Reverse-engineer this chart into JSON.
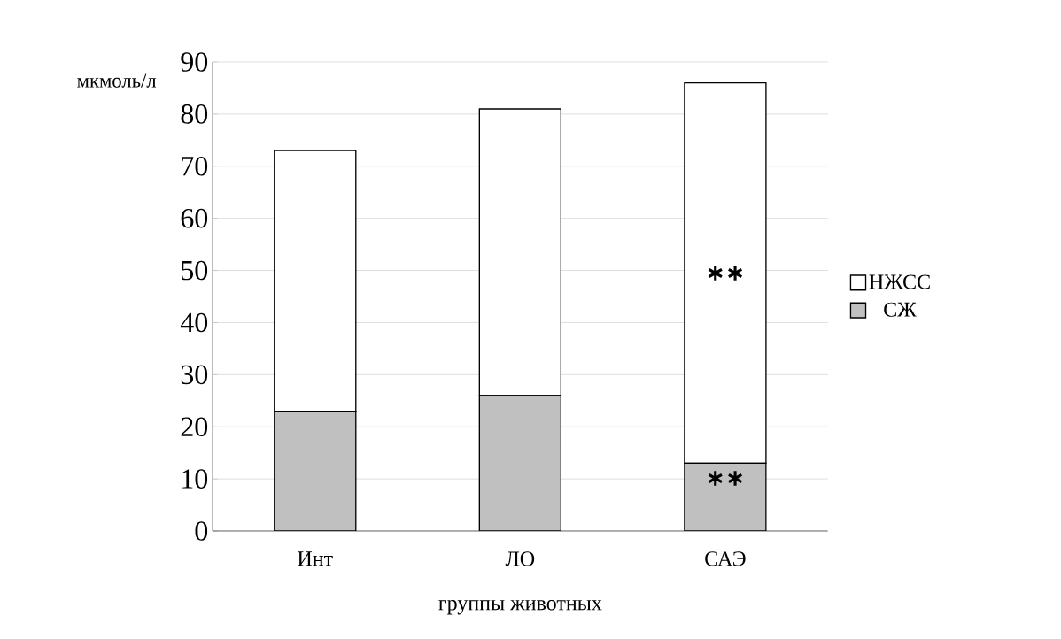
{
  "chart_data": {
    "type": "bar",
    "stacked": true,
    "xlabel": "группы животных",
    "ylabel": "мкмоль/л",
    "categories": [
      "Инт",
      "ЛО",
      "САЭ"
    ],
    "series": [
      {
        "name": "СЖ",
        "color": "#c0c0c0",
        "values": [
          23,
          26,
          13
        ]
      },
      {
        "name": "НЖСС",
        "color": "#ffffff",
        "values": [
          50,
          55,
          73
        ]
      }
    ],
    "ylim": [
      0,
      90
    ],
    "yticks": [
      0,
      10,
      20,
      30,
      40,
      50,
      60,
      70,
      80,
      90
    ],
    "grid": "y",
    "legend": "right",
    "annotations": [
      "∗∗",
      "∗∗"
    ]
  }
}
